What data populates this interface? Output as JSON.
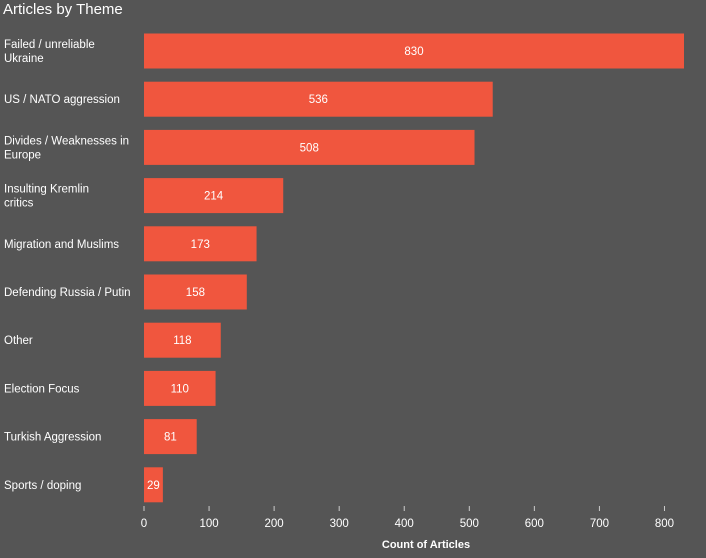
{
  "chart_data": {
    "type": "bar",
    "orientation": "horizontal",
    "title": "Articles by Theme",
    "xlabel": "Count of Articles",
    "ylabel": "",
    "categories": [
      "Failed / unreliable Ukraine",
      "US / NATO aggression",
      "Divides / Weaknesses in Europe",
      "Insulting Kremlin critics",
      "Migration and Muslims",
      "Defending Russia / Putin",
      "Other",
      "Election Focus",
      "Turkish Aggression",
      "Sports / doping"
    ],
    "values": [
      830,
      536,
      508,
      214,
      173,
      158,
      118,
      110,
      81,
      29
    ],
    "xlim": [
      0,
      830
    ],
    "xticks": [
      0,
      100,
      200,
      300,
      400,
      500,
      600,
      700,
      800
    ],
    "grid": false,
    "legend": "none",
    "bar_color": "#f0563e",
    "background_color": "#555555"
  }
}
